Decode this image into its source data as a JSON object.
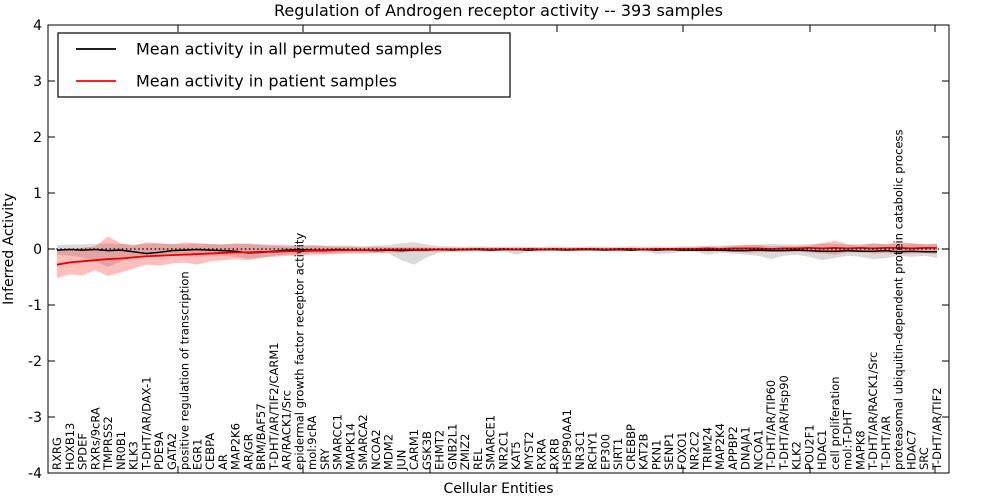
{
  "figure": {
    "title": "Regulation of Androgen receptor activity -- 393 samples",
    "xlabel": "Cellular Entities",
    "ylabel": "Inferred Activity"
  },
  "legend": {
    "position": "upper left",
    "entries": [
      {
        "label": "Mean activity in all permuted samples",
        "color": "#000000"
      },
      {
        "label": "Mean activity in patient samples",
        "color": "#ff0000"
      }
    ]
  },
  "colors": {
    "permuted_line": "#000000",
    "patient_line": "#ee0000",
    "permuted_band": "rgba(130,130,130,0.30)",
    "patient_band": "rgba(255,40,40,0.30)",
    "zero_line": "#000000",
    "frame": "#000000"
  },
  "chart_data": {
    "type": "line",
    "title": "Regulation of Androgen receptor activity -- 393 samples",
    "xlabel": "Cellular Entities",
    "ylabel": "Inferred Activity",
    "ylim": [
      -4,
      4
    ],
    "ytick_labels": [
      "4",
      "3",
      "2",
      "1",
      "0",
      "-1",
      "-2",
      "-3",
      "-4"
    ],
    "ytick_values": [
      4,
      3,
      2,
      1,
      0,
      -1,
      -2,
      -3,
      -4
    ],
    "grid": false,
    "legend_position": "upper left",
    "reference_line": {
      "y": 0,
      "style": "dotted",
      "color": "#000000"
    },
    "categories": [
      "RXRG",
      "HOXB13",
      "SPDEF",
      "RXRs/9cRA",
      "TMPRSS2",
      "NR0B1",
      "KLK3",
      "T-DHT/AR/DAX-1",
      "PDE9A",
      "GATA2",
      "positive regulation of transcription",
      "EGR1",
      "CEBPA",
      "AR",
      "MAP2K6",
      "AR/GR",
      "BRM/BAF57",
      "T-DHT/AR/TIF2/CARM1",
      "AR/RACK1/Src",
      "epidermal growth factor receptor activity",
      "mol:9cRA",
      "SRY",
      "SMARCC1",
      "MAPK14",
      "SMARCA2",
      "NCOA2",
      "MDM2",
      "JUN",
      "CARM1",
      "GSK3B",
      "EHMT2",
      "GNB2L1",
      "ZMIZ2",
      "REL",
      "SMARCE1",
      "NR2C1",
      "KAT5",
      "MYST2",
      "RXRA",
      "RXRB",
      "HSP90AA1",
      "NR3C1",
      "RCHY1",
      "EP300",
      "SIRT1",
      "CREBBP",
      "KAT2B",
      "PKN1",
      "SENP1",
      "FOXO1",
      "NR2C2",
      "TRIM24",
      "MAP2K4",
      "APPBP2",
      "DNAJA1",
      "NCOA1",
      "T-DHT/AR/TIP60",
      "T-DHT/AR/Hsp90",
      "KLK2",
      "POU2F1",
      "HDAC1",
      "cell proliferation",
      "mol:T-DHT",
      "MAPK8",
      "T-DHT/AR/RACK1/Src",
      "T-DHT/AR",
      "proteasomal ubiquitin-dependent protein catabolic process",
      "HDAC7",
      "SRC",
      "T-DHT/AR/TIF2"
    ],
    "series": [
      {
        "name": "Mean activity in all permuted samples",
        "color": "#000000",
        "values": [
          -0.02,
          -0.01,
          -0.02,
          -0.01,
          -0.03,
          -0.02,
          -0.05,
          -0.08,
          -0.06,
          -0.03,
          -0.02,
          -0.01,
          -0.02,
          -0.03,
          -0.04,
          -0.07,
          -0.06,
          -0.04,
          -0.02,
          -0.01,
          -0.02,
          -0.02,
          -0.01,
          -0.02,
          -0.02,
          -0.03,
          -0.02,
          -0.03,
          -0.02,
          -0.02,
          -0.01,
          -0.02,
          -0.01,
          -0.01,
          -0.02,
          -0.01,
          -0.01,
          -0.02,
          -0.01,
          -0.01,
          -0.02,
          -0.01,
          -0.01,
          -0.02,
          -0.01,
          -0.02,
          -0.01,
          -0.02,
          -0.01,
          -0.02,
          -0.02,
          -0.02,
          -0.02,
          -0.03,
          -0.03,
          -0.02,
          -0.03,
          -0.03,
          -0.02,
          -0.03,
          -0.04,
          -0.04,
          -0.03,
          -0.04,
          -0.04,
          -0.03,
          -0.05,
          -0.04,
          -0.05,
          -0.05
        ]
      },
      {
        "name": "Mean activity in patient samples",
        "color": "#ee0000",
        "values": [
          -0.28,
          -0.24,
          -0.22,
          -0.2,
          -0.18,
          -0.17,
          -0.15,
          -0.13,
          -0.12,
          -0.11,
          -0.1,
          -0.09,
          -0.08,
          -0.07,
          -0.06,
          -0.06,
          -0.05,
          -0.05,
          -0.04,
          -0.04,
          -0.03,
          -0.03,
          -0.02,
          -0.02,
          -0.02,
          -0.02,
          -0.01,
          -0.01,
          -0.01,
          -0.01,
          -0.01,
          -0.01,
          -0.01,
          0.0,
          -0.01,
          0.0,
          -0.01,
          0.0,
          -0.01,
          0.0,
          -0.01,
          0.0,
          0.0,
          -0.01,
          0.0,
          0.0,
          -0.01,
          0.0,
          0.0,
          0.0,
          0.0,
          0.01,
          0.0,
          0.01,
          0.01,
          0.01,
          0.0,
          0.01,
          0.01,
          0.02,
          0.01,
          0.02,
          0.01,
          0.02,
          0.01,
          0.02,
          0.02,
          0.01,
          0.02,
          0.02
        ]
      }
    ],
    "bands": [
      {
        "name": "permuted-samples-spread",
        "color": "rgba(130,130,130,0.30)",
        "upper": [
          0.07,
          0.08,
          0.08,
          0.09,
          0.1,
          0.09,
          0.08,
          0.09,
          0.1,
          0.09,
          0.08,
          0.1,
          0.09,
          0.08,
          0.09,
          0.1,
          0.09,
          0.08,
          0.08,
          0.07,
          0.07,
          0.06,
          0.06,
          0.06,
          0.05,
          0.06,
          0.07,
          0.1,
          0.12,
          0.08,
          0.05,
          0.05,
          0.04,
          0.05,
          0.04,
          0.04,
          0.05,
          0.04,
          0.04,
          0.05,
          0.04,
          0.04,
          0.05,
          0.04,
          0.04,
          0.05,
          0.04,
          0.05,
          0.04,
          0.05,
          0.05,
          0.06,
          0.06,
          0.07,
          0.08,
          0.08,
          0.09,
          0.08,
          0.08,
          0.09,
          0.1,
          0.09,
          0.08,
          0.09,
          0.1,
          0.09,
          0.09,
          0.1,
          0.09,
          0.1
        ],
        "lower": [
          -0.1,
          -0.12,
          -0.15,
          -0.22,
          -0.32,
          -0.22,
          -0.15,
          -0.12,
          -0.14,
          -0.12,
          -0.12,
          -0.14,
          -0.12,
          -0.12,
          -0.14,
          -0.17,
          -0.15,
          -0.12,
          -0.1,
          -0.1,
          -0.08,
          -0.08,
          -0.07,
          -0.06,
          -0.06,
          -0.06,
          -0.08,
          -0.2,
          -0.28,
          -0.15,
          -0.06,
          -0.05,
          -0.05,
          -0.04,
          -0.05,
          -0.04,
          -0.1,
          -0.05,
          -0.05,
          -0.04,
          -0.04,
          -0.05,
          -0.04,
          -0.04,
          -0.05,
          -0.04,
          -0.04,
          -0.09,
          -0.08,
          -0.05,
          -0.05,
          -0.1,
          -0.07,
          -0.08,
          -0.1,
          -0.12,
          -0.18,
          -0.12,
          -0.1,
          -0.14,
          -0.2,
          -0.16,
          -0.12,
          -0.14,
          -0.18,
          -0.16,
          -0.12,
          -0.14,
          -0.12,
          -0.16
        ]
      },
      {
        "name": "patient-samples-spread",
        "color": "rgba(255,40,40,0.30)",
        "upper": [
          -0.02,
          0.0,
          0.02,
          0.05,
          0.22,
          0.1,
          0.06,
          0.12,
          0.1,
          0.08,
          0.12,
          0.1,
          0.09,
          0.08,
          0.1,
          0.09,
          0.07,
          0.06,
          0.05,
          0.05,
          0.06,
          0.05,
          0.04,
          0.04,
          0.03,
          0.04,
          0.03,
          0.03,
          0.03,
          0.03,
          0.02,
          0.02,
          0.02,
          0.02,
          0.02,
          0.02,
          0.02,
          0.02,
          0.02,
          0.02,
          0.02,
          0.02,
          0.02,
          0.02,
          0.02,
          0.02,
          0.02,
          0.02,
          0.02,
          0.03,
          0.03,
          0.04,
          0.04,
          0.05,
          0.07,
          0.07,
          0.05,
          0.05,
          0.05,
          0.06,
          0.1,
          0.15,
          0.08,
          0.06,
          0.1,
          0.08,
          0.13,
          0.1,
          0.08,
          0.09
        ],
        "lower": [
          -0.52,
          -0.45,
          -0.47,
          -0.38,
          -0.48,
          -0.42,
          -0.35,
          -0.28,
          -0.3,
          -0.26,
          -0.24,
          -0.28,
          -0.22,
          -0.2,
          -0.18,
          -0.2,
          -0.16,
          -0.14,
          -0.12,
          -0.12,
          -0.1,
          -0.1,
          -0.09,
          -0.08,
          -0.08,
          -0.07,
          -0.06,
          -0.06,
          -0.05,
          -0.05,
          -0.04,
          -0.04,
          -0.04,
          -0.03,
          -0.04,
          -0.03,
          -0.03,
          -0.03,
          -0.03,
          -0.03,
          -0.03,
          -0.03,
          -0.03,
          -0.03,
          -0.03,
          -0.03,
          -0.03,
          -0.03,
          -0.03,
          -0.03,
          -0.03,
          -0.04,
          -0.04,
          -0.05,
          -0.06,
          -0.06,
          -0.05,
          -0.05,
          -0.05,
          -0.06,
          -0.08,
          -0.1,
          -0.06,
          -0.06,
          -0.08,
          -0.07,
          -0.09,
          -0.08,
          -0.07,
          -0.09
        ]
      }
    ]
  }
}
